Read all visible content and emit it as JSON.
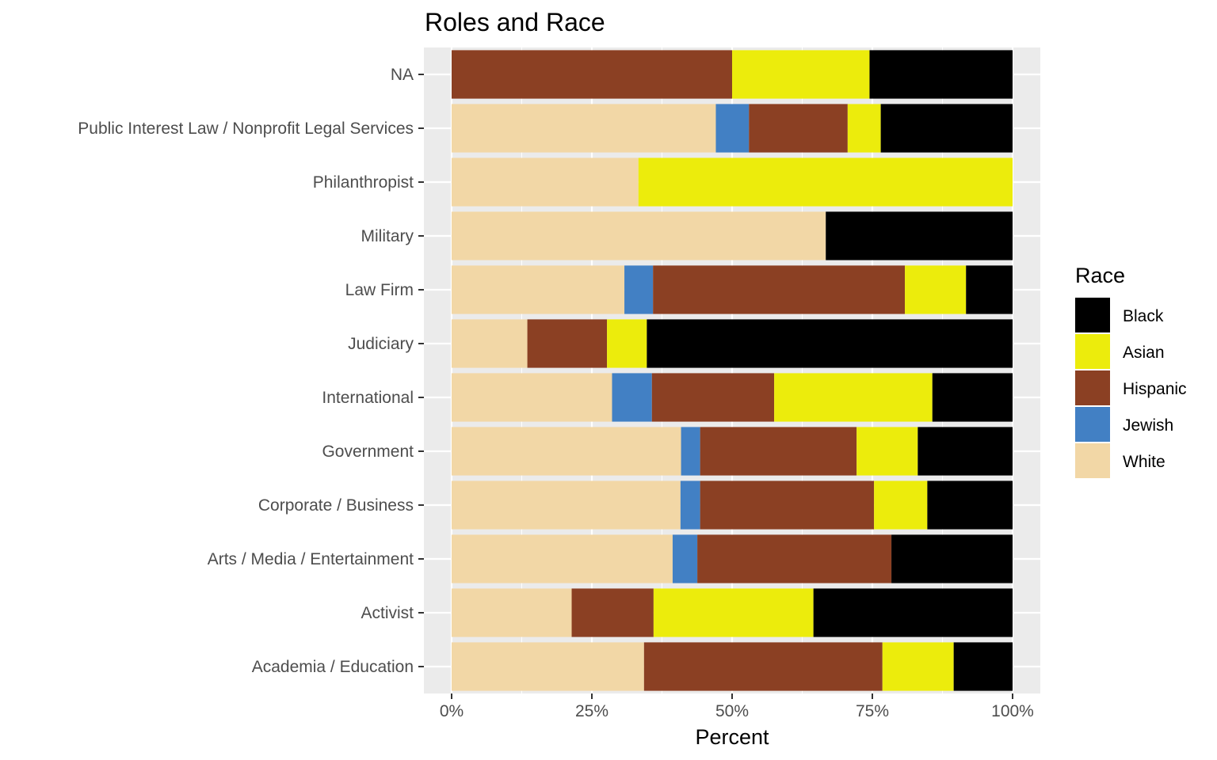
{
  "chart_data": {
    "type": "bar",
    "orientation": "horizontal",
    "stacked": "percent",
    "title": "Roles and Race",
    "xlabel": "Percent",
    "ylabel": "",
    "xlim": [
      0,
      100
    ],
    "x_ticks": [
      "0%",
      "25%",
      "50%",
      "75%",
      "100%"
    ],
    "grid": true,
    "legend": {
      "title": "Race",
      "position": "right"
    },
    "categories": [
      "NA",
      "Public Interest Law / Nonprofit Legal Services",
      "Philanthropist",
      "Military",
      "Law Firm",
      "Judiciary",
      "International",
      "Government",
      "Corporate / Business",
      "Arts / Media / Entertainment",
      "Activist",
      "Academia / Education"
    ],
    "series": [
      {
        "name": "White",
        "color": "#F2D7A6",
        "values": [
          0,
          47.1,
          33.3,
          66.7,
          30.8,
          13.5,
          28.6,
          40.9,
          40.8,
          39.4,
          21.4,
          34.3
        ]
      },
      {
        "name": "Jewish",
        "color": "#4280C4",
        "values": [
          0,
          5.9,
          0,
          0,
          5.1,
          0,
          7.1,
          3.4,
          3.5,
          4.4,
          0,
          0
        ]
      },
      {
        "name": "Hispanic",
        "color": "#8B4023",
        "values": [
          50.0,
          17.6,
          0,
          0,
          44.9,
          14.2,
          21.8,
          27.9,
          31.0,
          34.6,
          14.6,
          42.5
        ]
      },
      {
        "name": "Asian",
        "color": "#ECEC0C",
        "values": [
          24.5,
          5.9,
          66.7,
          0,
          10.9,
          7.1,
          28.2,
          10.9,
          9.5,
          0,
          28.5,
          12.7
        ]
      },
      {
        "name": "Black",
        "color": "#000000",
        "values": [
          25.5,
          23.5,
          0,
          33.3,
          8.3,
          65.2,
          14.3,
          16.9,
          15.2,
          21.6,
          35.5,
          10.5
        ]
      }
    ],
    "legend_order": [
      "Black",
      "Asian",
      "Hispanic",
      "Jewish",
      "White"
    ]
  }
}
